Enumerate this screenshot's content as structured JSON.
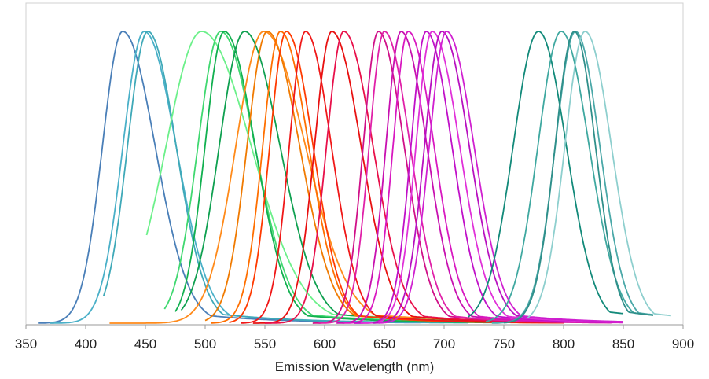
{
  "chart_data": {
    "type": "line",
    "title": "",
    "xlabel": "Emission Wavelength (nm)",
    "ylabel": "",
    "xlim": [
      350,
      900
    ],
    "ylim": [
      0,
      1.05
    ],
    "x_ticks": [
      350,
      400,
      450,
      500,
      550,
      600,
      650,
      700,
      750,
      800,
      850,
      900
    ],
    "grid": false,
    "legend": "none",
    "series": [
      {
        "color": "#4a7fb8",
        "peak": 431,
        "fwhm": 40,
        "skew": 1.6,
        "start": 360,
        "end": 680
      },
      {
        "color": "#4ab0c8",
        "peak": 449,
        "fwhm": 42,
        "skew": 1.5,
        "start": 370,
        "end": 700
      },
      {
        "color": "#3fa9b8",
        "peak": 452,
        "fwhm": 40,
        "skew": 1.4,
        "start": 415,
        "end": 720
      },
      {
        "color": "#6cf08a",
        "peak": 497,
        "fwhm": 70,
        "skew": 1.4,
        "start": 451,
        "end": 680
      },
      {
        "color": "#40d870",
        "peak": 513,
        "fwhm": 45,
        "skew": 1.5,
        "start": 466,
        "end": 720
      },
      {
        "color": "#12b050",
        "peak": 516,
        "fwhm": 38,
        "skew": 1.6,
        "start": 475,
        "end": 740
      },
      {
        "color": "#0fa050",
        "peak": 533,
        "fwhm": 50,
        "skew": 1.4,
        "start": 480,
        "end": 760
      },
      {
        "color": "#ff8a1a",
        "peak": 549,
        "fwhm": 55,
        "skew": 1.5,
        "start": 420,
        "end": 780
      },
      {
        "color": "#f07a00",
        "peak": 552,
        "fwhm": 40,
        "skew": 1.6,
        "start": 500,
        "end": 780
      },
      {
        "color": "#ff6f00",
        "peak": 563,
        "fwhm": 35,
        "skew": 1.6,
        "start": 505,
        "end": 800
      },
      {
        "color": "#ff3a00",
        "peak": 568,
        "fwhm": 33,
        "skew": 1.6,
        "start": 520,
        "end": 800
      },
      {
        "color": "#f01818",
        "peak": 584,
        "fwhm": 32,
        "skew": 1.6,
        "start": 530,
        "end": 800
      },
      {
        "color": "#e81010",
        "peak": 606,
        "fwhm": 34,
        "skew": 1.7,
        "start": 540,
        "end": 800
      },
      {
        "color": "#e8104a",
        "peak": 616,
        "fwhm": 34,
        "skew": 1.7,
        "start": 550,
        "end": 800
      },
      {
        "color": "#d01088",
        "peak": 645,
        "fwhm": 30,
        "skew": 1.7,
        "start": 590,
        "end": 840
      },
      {
        "color": "#e020a8",
        "peak": 650,
        "fwhm": 30,
        "skew": 1.7,
        "start": 595,
        "end": 840
      },
      {
        "color": "#c810b0",
        "peak": 664,
        "fwhm": 30,
        "skew": 1.7,
        "start": 610,
        "end": 840
      },
      {
        "color": "#d818c0",
        "peak": 670,
        "fwhm": 30,
        "skew": 1.7,
        "start": 615,
        "end": 850
      },
      {
        "color": "#c010c8",
        "peak": 685,
        "fwhm": 30,
        "skew": 1.7,
        "start": 625,
        "end": 850
      },
      {
        "color": "#e030d8",
        "peak": 690,
        "fwhm": 32,
        "skew": 1.7,
        "start": 630,
        "end": 850
      },
      {
        "color": "#b810c0",
        "peak": 698,
        "fwhm": 34,
        "skew": 1.6,
        "start": 640,
        "end": 850
      },
      {
        "color": "#d020d0",
        "peak": 702,
        "fwhm": 34,
        "skew": 1.6,
        "start": 645,
        "end": 850
      },
      {
        "color": "#138a7a",
        "peak": 779,
        "fwhm": 50,
        "skew": 1.1,
        "start": 720,
        "end": 850
      },
      {
        "color": "#3fa8a0",
        "peak": 798,
        "fwhm": 46,
        "skew": 1.2,
        "start": 735,
        "end": 875
      },
      {
        "color": "#4aa8a8",
        "peak": 810,
        "fwhm": 40,
        "skew": 1.2,
        "start": 740,
        "end": 875
      },
      {
        "color": "#2f8f8a",
        "peak": 809,
        "fwhm": 38,
        "skew": 1.1,
        "start": 750,
        "end": 875
      },
      {
        "color": "#8ecfce",
        "peak": 818,
        "fwhm": 40,
        "skew": 1.3,
        "start": 770,
        "end": 890
      }
    ]
  }
}
